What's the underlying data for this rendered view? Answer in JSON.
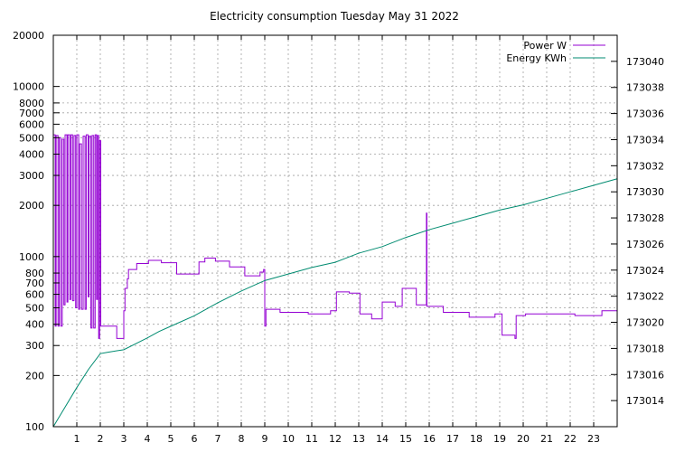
{
  "chart_data": {
    "type": "line",
    "title": "Electricity consumption Tuesday May 31 2022",
    "xlabel": "",
    "ylabel": "",
    "y2label": "",
    "xlim": [
      0,
      24
    ],
    "ylim": [
      100,
      20000
    ],
    "yscale": "log",
    "y2lim": [
      173012,
      173042
    ],
    "grid": true,
    "legend_position": "top-right",
    "x_ticks": [
      1,
      2,
      3,
      4,
      5,
      6,
      7,
      8,
      9,
      10,
      11,
      12,
      13,
      14,
      15,
      16,
      17,
      18,
      19,
      20,
      21,
      22,
      23
    ],
    "y_ticks": [
      {
        "value": 100,
        "label": "100"
      },
      {
        "value": 200,
        "label": "200"
      },
      {
        "value": 300,
        "label": "300"
      },
      {
        "value": 400,
        "label": "400"
      },
      {
        "value": 500,
        "label": "500"
      },
      {
        "value": 600,
        "label": "600"
      },
      {
        "value": 700,
        "label": "700"
      },
      {
        "value": 800,
        "label": "800"
      },
      {
        "value": 1000,
        "label": "1000"
      },
      {
        "value": 2000,
        "label": "2000"
      },
      {
        "value": 3000,
        "label": "3000"
      },
      {
        "value": 4000,
        "label": "4000"
      },
      {
        "value": 5000,
        "label": "5000"
      },
      {
        "value": 6000,
        "label": "6000"
      },
      {
        "value": 7000,
        "label": "7000"
      },
      {
        "value": 8000,
        "label": "8000"
      },
      {
        "value": 10000,
        "label": "10000"
      },
      {
        "value": 20000,
        "label": "20000"
      }
    ],
    "y2_ticks": [
      173014,
      173016,
      173018,
      173020,
      173022,
      173024,
      173026,
      173028,
      173030,
      173032,
      173034,
      173036,
      173038,
      173040
    ],
    "series": [
      {
        "name": "Power W",
        "axis": "y",
        "color": "#9400d3",
        "step": true,
        "points": [
          [
            0.0,
            5200
          ],
          [
            0.08,
            390
          ],
          [
            0.12,
            5150
          ],
          [
            0.2,
            390
          ],
          [
            0.25,
            5000
          ],
          [
            0.32,
            390
          ],
          [
            0.38,
            4900
          ],
          [
            0.45,
            520
          ],
          [
            0.5,
            5200
          ],
          [
            0.58,
            540
          ],
          [
            0.62,
            5200
          ],
          [
            0.7,
            560
          ],
          [
            0.75,
            5200
          ],
          [
            0.82,
            550
          ],
          [
            0.88,
            5150
          ],
          [
            0.95,
            500
          ],
          [
            1.0,
            5200
          ],
          [
            1.08,
            490
          ],
          [
            1.12,
            4600
          ],
          [
            1.2,
            490
          ],
          [
            1.27,
            5100
          ],
          [
            1.35,
            490
          ],
          [
            1.4,
            5200
          ],
          [
            1.48,
            580
          ],
          [
            1.52,
            5100
          ],
          [
            1.6,
            380
          ],
          [
            1.65,
            5150
          ],
          [
            1.72,
            380
          ],
          [
            1.78,
            5200
          ],
          [
            1.84,
            560
          ],
          [
            1.88,
            5150
          ],
          [
            1.93,
            330
          ],
          [
            1.97,
            4800
          ],
          [
            2.02,
            390
          ],
          [
            2.7,
            330
          ],
          [
            3.0,
            480
          ],
          [
            3.05,
            650
          ],
          [
            3.15,
            740
          ],
          [
            3.2,
            840
          ],
          [
            3.55,
            910
          ],
          [
            4.05,
            950
          ],
          [
            4.6,
            920
          ],
          [
            5.25,
            790
          ],
          [
            6.2,
            930
          ],
          [
            6.45,
            980
          ],
          [
            6.9,
            940
          ],
          [
            7.5,
            870
          ],
          [
            8.15,
            770
          ],
          [
            8.8,
            810
          ],
          [
            8.95,
            840
          ],
          [
            9.0,
            390
          ],
          [
            9.05,
            490
          ],
          [
            9.65,
            470
          ],
          [
            10.85,
            460
          ],
          [
            11.8,
            480
          ],
          [
            12.05,
            620
          ],
          [
            12.6,
            610
          ],
          [
            13.05,
            460
          ],
          [
            13.55,
            430
          ],
          [
            14.0,
            540
          ],
          [
            14.55,
            510
          ],
          [
            14.85,
            650
          ],
          [
            15.45,
            520
          ],
          [
            15.88,
            1800
          ],
          [
            15.9,
            510
          ],
          [
            16.6,
            470
          ],
          [
            17.7,
            440
          ],
          [
            18.8,
            460
          ],
          [
            19.1,
            345
          ],
          [
            19.65,
            330
          ],
          [
            19.7,
            450
          ],
          [
            20.1,
            460
          ],
          [
            22.2,
            450
          ],
          [
            23.35,
            480
          ],
          [
            24.0,
            480
          ]
        ]
      },
      {
        "name": "Energy KWh",
        "axis": "y2",
        "color": "#008b70",
        "step": false,
        "points": [
          [
            0.0,
            173012.0
          ],
          [
            0.5,
            173013.5
          ],
          [
            1.0,
            173015.0
          ],
          [
            1.5,
            173016.4
          ],
          [
            2.0,
            173017.6
          ],
          [
            2.3,
            173017.7
          ],
          [
            3.0,
            173017.9
          ],
          [
            4.0,
            173018.8
          ],
          [
            4.5,
            173019.3
          ],
          [
            5.0,
            173019.7
          ],
          [
            6.0,
            173020.5
          ],
          [
            7.0,
            173021.5
          ],
          [
            8.0,
            173022.4
          ],
          [
            9.0,
            173023.2
          ],
          [
            10.0,
            173023.7
          ],
          [
            11.0,
            173024.2
          ],
          [
            12.0,
            173024.6
          ],
          [
            13.0,
            173025.3
          ],
          [
            14.0,
            173025.8
          ],
          [
            15.0,
            173026.5
          ],
          [
            16.0,
            173027.1
          ],
          [
            17.0,
            173027.6
          ],
          [
            18.0,
            173028.1
          ],
          [
            19.0,
            173028.6
          ],
          [
            20.0,
            173029.0
          ],
          [
            21.0,
            173029.5
          ],
          [
            22.0,
            173030.0
          ],
          [
            23.0,
            173030.5
          ],
          [
            24.0,
            173031.0
          ]
        ]
      }
    ]
  }
}
